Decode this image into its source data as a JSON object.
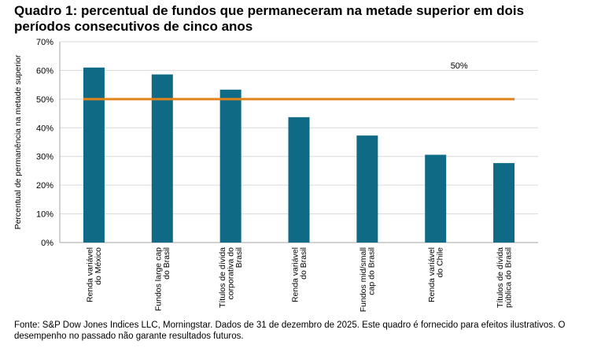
{
  "title": "Quadro 1: percentual de fundos que permaneceram na metade superior em dois períodos consecutivos de cinco anos",
  "source": "Fonte: S&P Dow Jones Indices LLC, Morningstar. Dados de 31 de dezembro de 2025. Este quadro é fornecido para efeitos ilustrativos. O desempenho no passado não garante resultados futuros.",
  "chart_data": {
    "type": "bar",
    "categories": [
      [
        "Renda variável",
        "do México"
      ],
      [
        "Fundos large cap",
        "do Brasil"
      ],
      [
        "Títulos de dívida",
        "corporativa do",
        "Brasil"
      ],
      [
        "Renda variável",
        "do Brasil"
      ],
      [
        "Fundos mid/small",
        "cap do Brasil"
      ],
      [
        "Renda variável",
        "do Chile"
      ],
      [
        "Títulos de dívida",
        "pública do Brasil"
      ]
    ],
    "values": [
      61,
      58.6,
      53.3,
      43.7,
      37.3,
      30.6,
      27.7
    ],
    "ylabel": "Percentual de permanência na metade superior",
    "ylim": [
      0,
      70
    ],
    "yticks": [
      "0%",
      "10%",
      "20%",
      "30%",
      "40%",
      "50%",
      "60%",
      "70%"
    ],
    "reference_line": {
      "value": 50,
      "label": "50%"
    },
    "grid": true,
    "colors": {
      "bar": "#0e6a85",
      "reference_line": "#e1831a",
      "grid": "#d9d9d9",
      "axis": "#a6a6a6"
    }
  }
}
